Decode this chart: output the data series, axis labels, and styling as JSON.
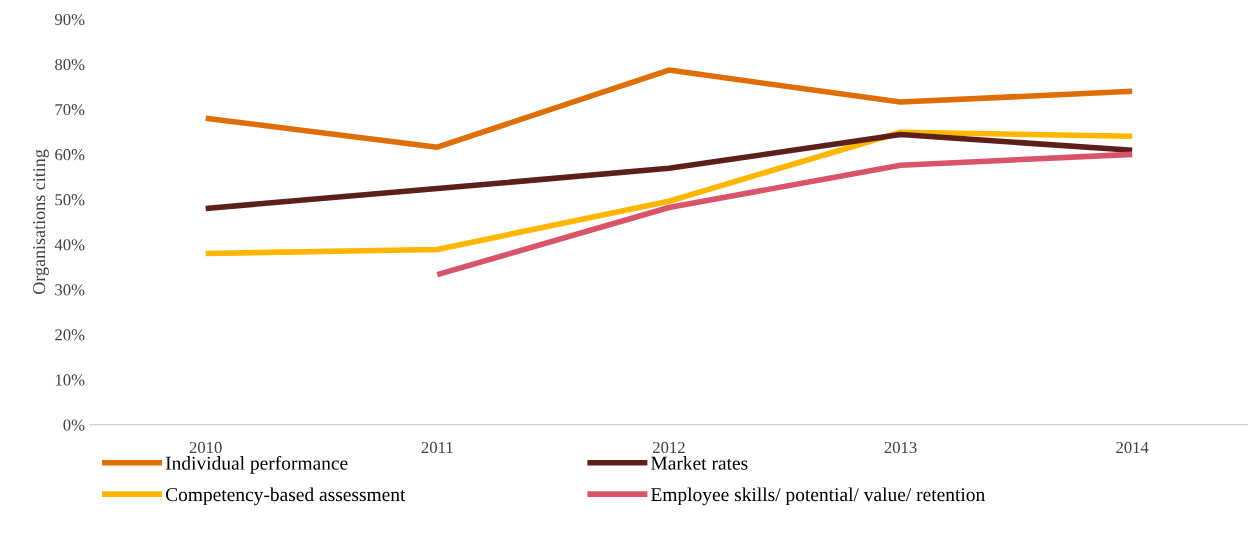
{
  "chart_data": {
    "type": "line",
    "ylabel": "Organisations citing",
    "categories": [
      "2010",
      "2011",
      "2012",
      "2013",
      "2014"
    ],
    "series": [
      {
        "name": "Individual performance",
        "color": "#df6e07",
        "values": [
          68,
          61.6,
          78.7,
          71.6,
          74
        ]
      },
      {
        "name": "Competency-based assessment",
        "color": "#ffb600",
        "values": [
          38,
          38.9,
          49.6,
          64.9,
          64
        ]
      },
      {
        "name": "Market rates",
        "color": "#5c1f1a",
        "values": [
          48,
          52.4,
          56.9,
          64.4,
          60.9
        ]
      },
      {
        "name": "Employee skills/ potential/ value/ retention",
        "color": "#d9536a",
        "values": [
          null,
          33.3,
          48.2,
          57.6,
          60
        ]
      }
    ],
    "ylim": [
      0,
      90
    ],
    "yticks": [
      {
        "value": 0,
        "label": "0%"
      },
      {
        "value": 10,
        "label": "10%"
      },
      {
        "value": 20,
        "label": "20%"
      },
      {
        "value": 30,
        "label": "30%"
      },
      {
        "value": 40,
        "label": "40%"
      },
      {
        "value": 50,
        "label": "50%"
      },
      {
        "value": 60,
        "label": "60%"
      },
      {
        "value": 70,
        "label": "70%"
      },
      {
        "value": 80,
        "label": "80%"
      },
      {
        "value": 90,
        "label": "90%"
      }
    ],
    "grid": false,
    "legend": "bottom",
    "marker": "none",
    "line_style": "solid"
  }
}
